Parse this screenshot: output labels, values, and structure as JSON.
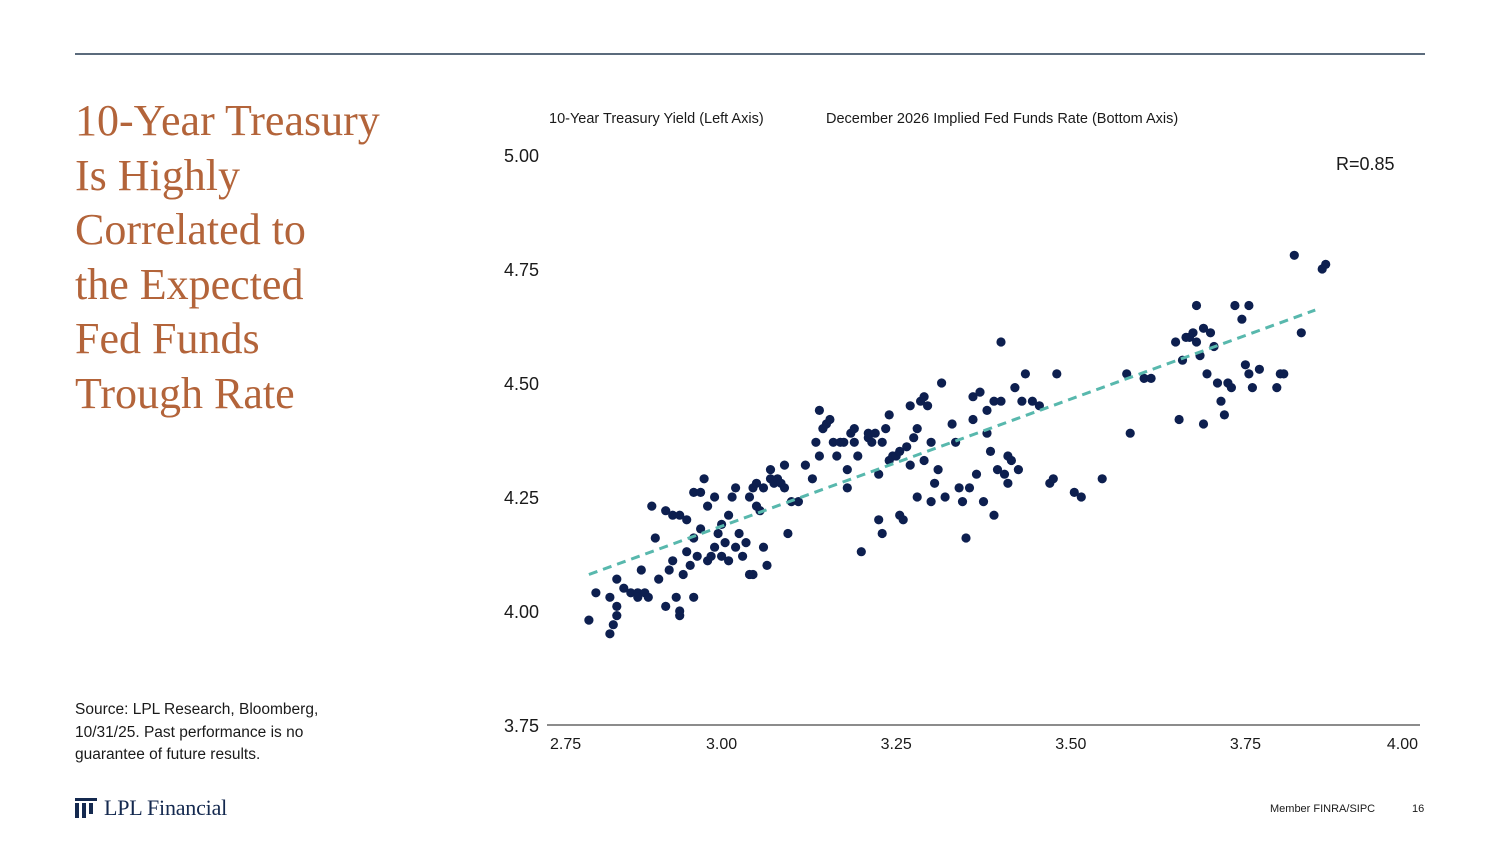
{
  "title_lines": [
    "10-Year Treasury",
    "Is Highly",
    "Correlated to",
    "the Expected",
    "Fed Funds",
    "Trough Rate"
  ],
  "source": "Source: LPL Research, Bloomberg, 10/31/25. Past performance is no guarantee of future results.",
  "footer": {
    "logo_text": "LPL Financial",
    "member": "Member FINRA/SIPC",
    "page": "16"
  },
  "colors": {
    "title": "#b3643a",
    "dots": "#0d1f4f",
    "trend": "#58b8ad",
    "rule": "#5b6b7c"
  },
  "chart_data": {
    "type": "scatter",
    "series_labels": {
      "y": "10-Year Treasury Yield (Left Axis)",
      "x": "December 2026 Implied Fed Funds Rate (Bottom Axis)"
    },
    "annotation": "R=0.85",
    "xlim": [
      2.75,
      4.0
    ],
    "ylim": [
      3.75,
      5.0
    ],
    "x_ticks": [
      "2.75",
      "3.00",
      "3.25",
      "3.50",
      "3.75",
      "4.00"
    ],
    "y_ticks": [
      "5.00",
      "4.75",
      "4.50",
      "4.25",
      "4.00",
      "3.75"
    ],
    "trendline": {
      "x": [
        2.81,
        3.85
      ],
      "y": [
        4.08,
        4.66
      ]
    },
    "points": [
      [
        2.81,
        3.98
      ],
      [
        2.82,
        4.04
      ],
      [
        2.84,
        3.95
      ],
      [
        2.845,
        3.97
      ],
      [
        2.85,
        4.07
      ],
      [
        2.85,
        3.99
      ],
      [
        2.85,
        4.01
      ],
      [
        2.84,
        4.03
      ],
      [
        2.86,
        4.05
      ],
      [
        2.87,
        4.04
      ],
      [
        2.88,
        4.04
      ],
      [
        2.88,
        4.03
      ],
      [
        2.885,
        4.09
      ],
      [
        2.89,
        4.04
      ],
      [
        2.895,
        4.03
      ],
      [
        2.9,
        4.23
      ],
      [
        2.905,
        4.16
      ],
      [
        2.91,
        4.07
      ],
      [
        2.92,
        4.01
      ],
      [
        2.925,
        4.09
      ],
      [
        2.92,
        4.22
      ],
      [
        2.93,
        4.21
      ],
      [
        2.93,
        4.11
      ],
      [
        2.935,
        4.03
      ],
      [
        2.94,
        4.21
      ],
      [
        2.94,
        3.99
      ],
      [
        2.94,
        4.0
      ],
      [
        2.945,
        4.08
      ],
      [
        2.95,
        4.13
      ],
      [
        2.95,
        4.2
      ],
      [
        2.955,
        4.1
      ],
      [
        2.96,
        4.03
      ],
      [
        2.96,
        4.16
      ],
      [
        2.96,
        4.26
      ],
      [
        2.965,
        4.12
      ],
      [
        2.97,
        4.26
      ],
      [
        2.97,
        4.18
      ],
      [
        2.975,
        4.29
      ],
      [
        2.98,
        4.23
      ],
      [
        2.98,
        4.11
      ],
      [
        2.985,
        4.12
      ],
      [
        2.99,
        4.14
      ],
      [
        2.99,
        4.25
      ],
      [
        2.995,
        4.17
      ],
      [
        3.0,
        4.12
      ],
      [
        3.0,
        4.19
      ],
      [
        3.005,
        4.15
      ],
      [
        3.01,
        4.11
      ],
      [
        3.01,
        4.21
      ],
      [
        3.015,
        4.25
      ],
      [
        3.02,
        4.27
      ],
      [
        3.02,
        4.14
      ],
      [
        3.025,
        4.17
      ],
      [
        3.03,
        4.12
      ],
      [
        3.035,
        4.15
      ],
      [
        3.04,
        4.08
      ],
      [
        3.04,
        4.25
      ],
      [
        3.045,
        4.27
      ],
      [
        3.045,
        4.08
      ],
      [
        3.05,
        4.23
      ],
      [
        3.05,
        4.28
      ],
      [
        3.055,
        4.22
      ],
      [
        3.06,
        4.27
      ],
      [
        3.06,
        4.14
      ],
      [
        3.065,
        4.1
      ],
      [
        3.07,
        4.29
      ],
      [
        3.07,
        4.31
      ],
      [
        3.075,
        4.28
      ],
      [
        3.08,
        4.29
      ],
      [
        3.085,
        4.28
      ],
      [
        3.09,
        4.32
      ],
      [
        3.09,
        4.27
      ],
      [
        3.095,
        4.17
      ],
      [
        3.1,
        4.24
      ],
      [
        3.11,
        4.24
      ],
      [
        3.12,
        4.32
      ],
      [
        3.13,
        4.29
      ],
      [
        3.135,
        4.37
      ],
      [
        3.14,
        4.34
      ],
      [
        3.14,
        4.44
      ],
      [
        3.145,
        4.4
      ],
      [
        3.15,
        4.41
      ],
      [
        3.155,
        4.42
      ],
      [
        3.16,
        4.37
      ],
      [
        3.165,
        4.34
      ],
      [
        3.17,
        4.37
      ],
      [
        3.175,
        4.37
      ],
      [
        3.18,
        4.31
      ],
      [
        3.18,
        4.27
      ],
      [
        3.185,
        4.39
      ],
      [
        3.19,
        4.4
      ],
      [
        3.19,
        4.37
      ],
      [
        3.195,
        4.34
      ],
      [
        3.2,
        4.13
      ],
      [
        3.21,
        4.38
      ],
      [
        3.21,
        4.39
      ],
      [
        3.215,
        4.37
      ],
      [
        3.22,
        4.39
      ],
      [
        3.225,
        4.3
      ],
      [
        3.225,
        4.2
      ],
      [
        3.23,
        4.37
      ],
      [
        3.23,
        4.17
      ],
      [
        3.235,
        4.4
      ],
      [
        3.24,
        4.33
      ],
      [
        3.24,
        4.43
      ],
      [
        3.245,
        4.34
      ],
      [
        3.25,
        4.34
      ],
      [
        3.255,
        4.21
      ],
      [
        3.255,
        4.35
      ],
      [
        3.26,
        4.2
      ],
      [
        3.265,
        4.36
      ],
      [
        3.27,
        4.32
      ],
      [
        3.27,
        4.45
      ],
      [
        3.275,
        4.38
      ],
      [
        3.28,
        4.4
      ],
      [
        3.28,
        4.25
      ],
      [
        3.285,
        4.46
      ],
      [
        3.29,
        4.47
      ],
      [
        3.29,
        4.33
      ],
      [
        3.295,
        4.45
      ],
      [
        3.3,
        4.37
      ],
      [
        3.3,
        4.24
      ],
      [
        3.305,
        4.28
      ],
      [
        3.31,
        4.31
      ],
      [
        3.315,
        4.5
      ],
      [
        3.32,
        4.25
      ],
      [
        3.33,
        4.41
      ],
      [
        3.335,
        4.37
      ],
      [
        3.34,
        4.27
      ],
      [
        3.345,
        4.24
      ],
      [
        3.35,
        4.16
      ],
      [
        3.355,
        4.27
      ],
      [
        3.36,
        4.42
      ],
      [
        3.36,
        4.47
      ],
      [
        3.365,
        4.3
      ],
      [
        3.37,
        4.48
      ],
      [
        3.375,
        4.24
      ],
      [
        3.38,
        4.44
      ],
      [
        3.38,
        4.39
      ],
      [
        3.385,
        4.35
      ],
      [
        3.39,
        4.46
      ],
      [
        3.39,
        4.21
      ],
      [
        3.395,
        4.31
      ],
      [
        3.4,
        4.59
      ],
      [
        3.4,
        4.46
      ],
      [
        3.405,
        4.3
      ],
      [
        3.41,
        4.34
      ],
      [
        3.41,
        4.28
      ],
      [
        3.415,
        4.33
      ],
      [
        3.42,
        4.49
      ],
      [
        3.425,
        4.31
      ],
      [
        3.43,
        4.46
      ],
      [
        3.435,
        4.52
      ],
      [
        3.445,
        4.46
      ],
      [
        3.455,
        4.45
      ],
      [
        3.47,
        4.28
      ],
      [
        3.475,
        4.29
      ],
      [
        3.48,
        4.52
      ],
      [
        3.505,
        4.26
      ],
      [
        3.515,
        4.25
      ],
      [
        3.545,
        4.29
      ],
      [
        3.58,
        4.52
      ],
      [
        3.585,
        4.39
      ],
      [
        3.605,
        4.51
      ],
      [
        3.615,
        4.51
      ],
      [
        3.65,
        4.59
      ],
      [
        3.655,
        4.42
      ],
      [
        3.66,
        4.55
      ],
      [
        3.665,
        4.6
      ],
      [
        3.67,
        4.6
      ],
      [
        3.675,
        4.61
      ],
      [
        3.68,
        4.67
      ],
      [
        3.68,
        4.59
      ],
      [
        3.685,
        4.56
      ],
      [
        3.69,
        4.41
      ],
      [
        3.69,
        4.62
      ],
      [
        3.695,
        4.52
      ],
      [
        3.7,
        4.61
      ],
      [
        3.705,
        4.58
      ],
      [
        3.71,
        4.5
      ],
      [
        3.715,
        4.46
      ],
      [
        3.72,
        4.43
      ],
      [
        3.725,
        4.5
      ],
      [
        3.73,
        4.49
      ],
      [
        3.735,
        4.67
      ],
      [
        3.745,
        4.64
      ],
      [
        3.75,
        4.54
      ],
      [
        3.755,
        4.52
      ],
      [
        3.755,
        4.67
      ],
      [
        3.76,
        4.49
      ],
      [
        3.77,
        4.53
      ],
      [
        3.795,
        4.49
      ],
      [
        3.8,
        4.52
      ],
      [
        3.805,
        4.52
      ],
      [
        3.82,
        4.78
      ],
      [
        3.83,
        4.61
      ],
      [
        3.86,
        4.75
      ],
      [
        3.865,
        4.76
      ]
    ]
  }
}
